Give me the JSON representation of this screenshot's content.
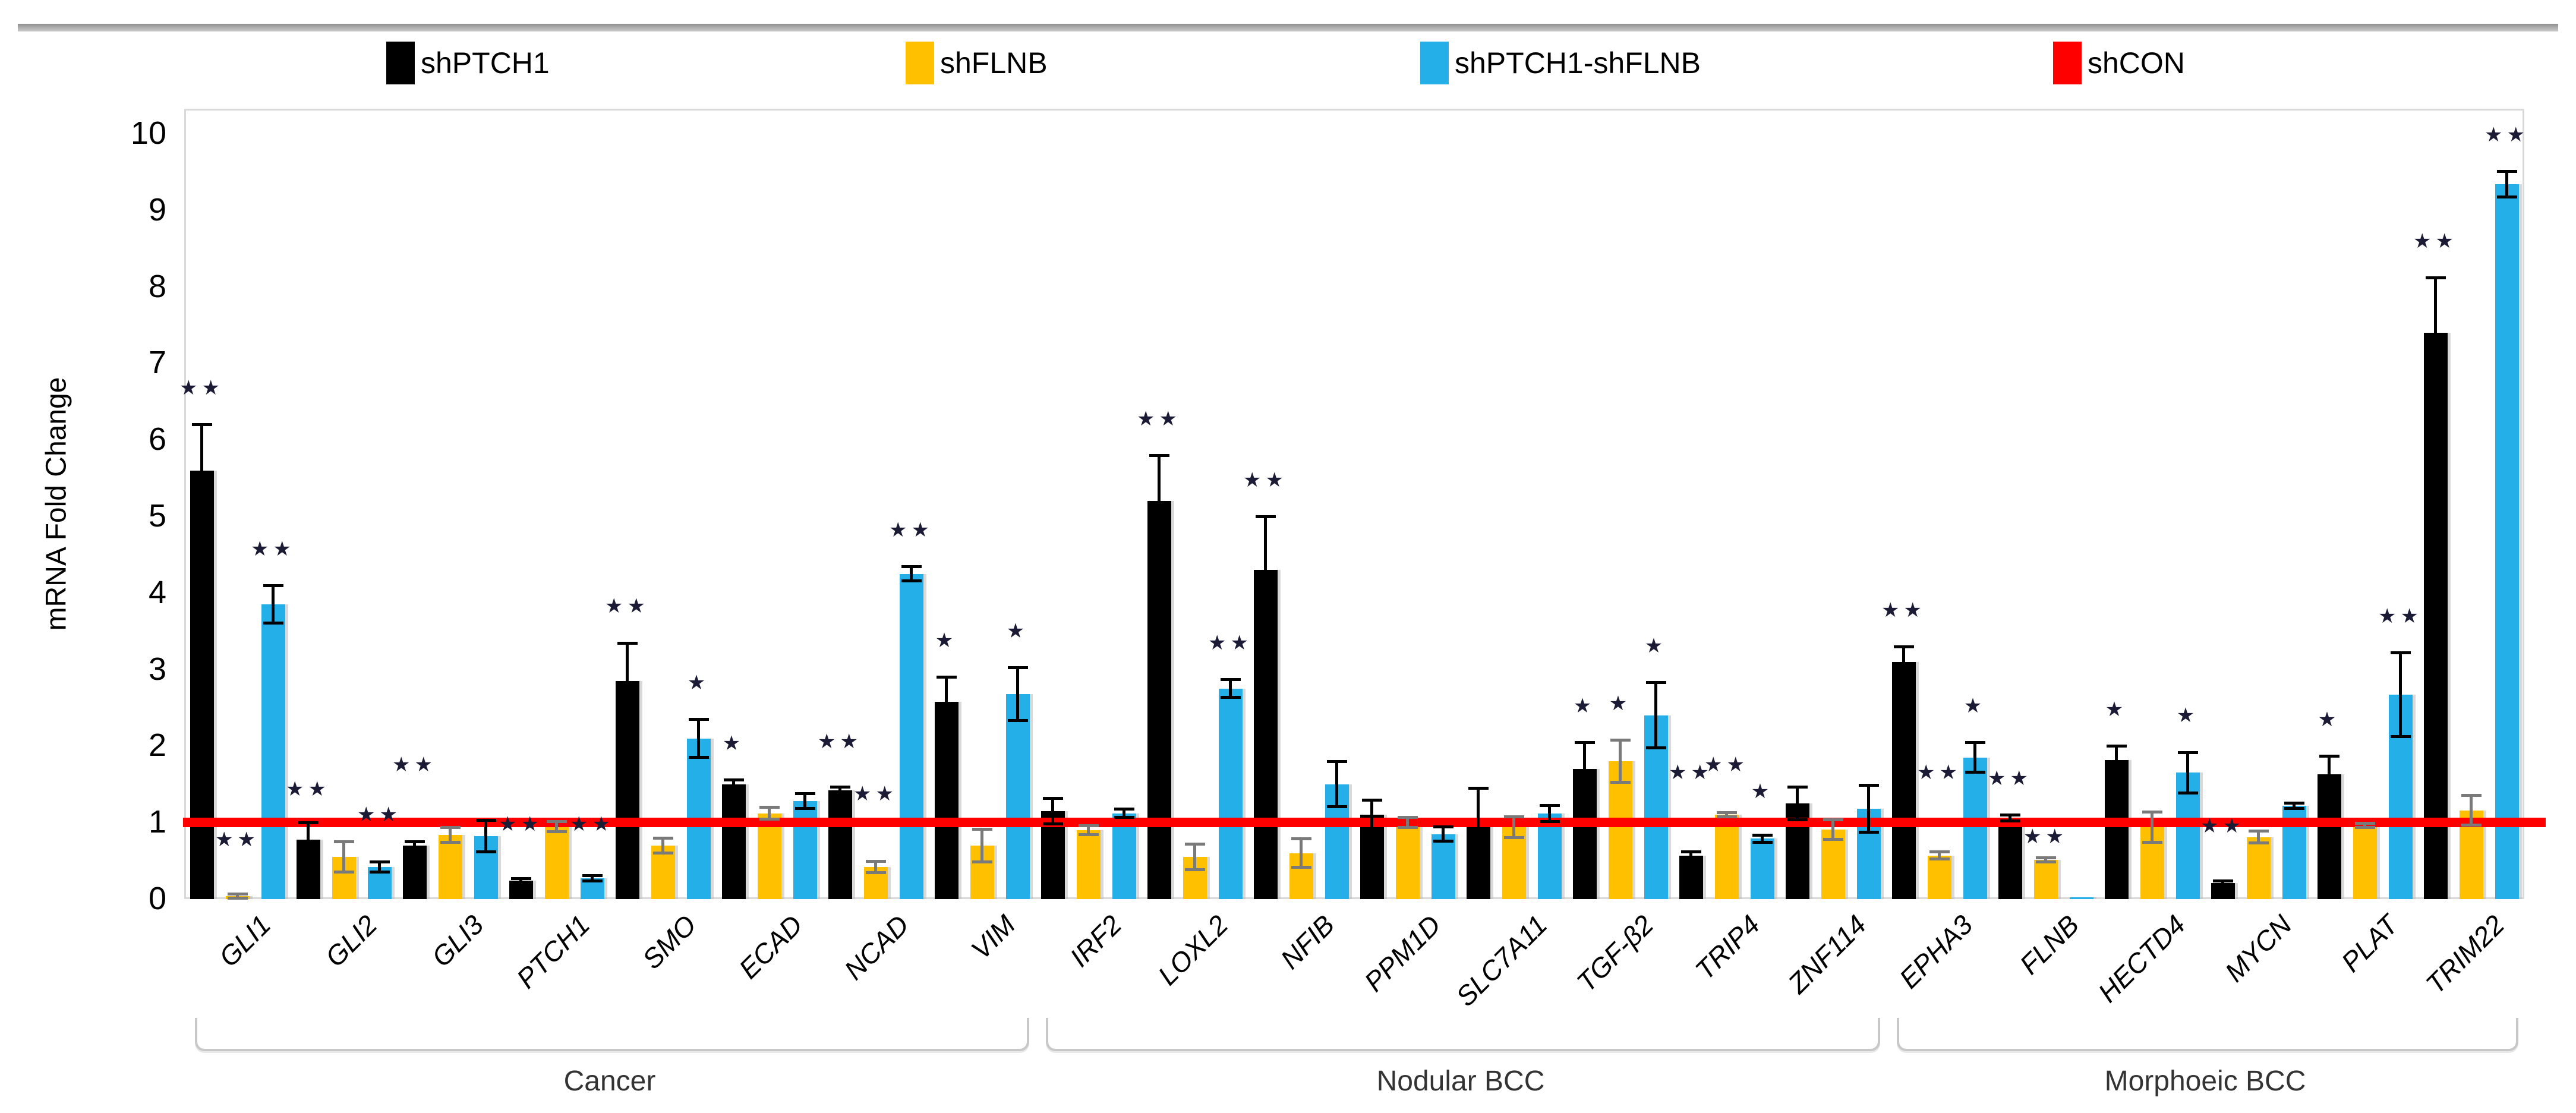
{
  "figure": {
    "y_axis_title": "mRNA Fold Change",
    "star_glyph": "★"
  },
  "legend": {
    "items": [
      {
        "label": "shPTCH1",
        "color": "#000000",
        "x": 650
      },
      {
        "label": "shFLNB",
        "color": "#FFC000",
        "x": 1524
      },
      {
        "label": "shPTCH1-shFLNB",
        "color": "#25AFE8",
        "x": 2390
      },
      {
        "label": "shCON",
        "color": "#FF0000",
        "x": 3455
      }
    ]
  },
  "chart_data": {
    "type": "bar",
    "title": "",
    "xlabel": "",
    "ylabel": "mRNA Fold Change",
    "ylim": [
      0,
      10
    ],
    "yticks": [
      0,
      1,
      2,
      3,
      4,
      5,
      6,
      7,
      8,
      9,
      10
    ],
    "grid": false,
    "legend_position": "top",
    "series_meta": [
      {
        "name": "shPTCH1",
        "color": "#000000",
        "errbar_color": "#000000"
      },
      {
        "name": "shFLNB",
        "color": "#FFC000",
        "errbar_color": "#7a7a7a"
      },
      {
        "name": "shPTCH1-shFLNB",
        "color": "#25AFE8",
        "errbar_color": "#000000"
      }
    ],
    "reference_line": {
      "label": "shCON",
      "value": 1,
      "color": "#FF0000"
    },
    "significance_note": "stars above bars: * p<0.05, ** p<0.01 (as rendered)",
    "groups": [
      {
        "name": "Cancer",
        "genes": [
          {
            "gene": "GLI1",
            "bars": [
              {
                "v": 5.6,
                "e": 0.6,
                "sig": "**"
              },
              {
                "v": 0.04,
                "e": 0.03,
                "sig": "**",
                "sy": 0.62
              },
              {
                "v": 3.85,
                "e": 0.25,
                "sig": "**"
              }
            ]
          },
          {
            "gene": "GLI2",
            "bars": [
              {
                "v": 0.78,
                "e": 0.22,
                "sig": "**",
                "sy": 1.28
              },
              {
                "v": 0.55,
                "e": 0.2,
                "sig": ""
              },
              {
                "v": 0.42,
                "e": 0.07,
                "sig": "**",
                "sy": 0.95
              }
            ]
          },
          {
            "gene": "GLI3",
            "bars": [
              {
                "v": 0.7,
                "e": 0.05,
                "sig": "**",
                "sy": 1.6
              },
              {
                "v": 0.84,
                "e": 0.1,
                "sig": ""
              },
              {
                "v": 0.82,
                "e": 0.21,
                "sig": ""
              }
            ]
          },
          {
            "gene": "PTCH1",
            "bars": [
              {
                "v": 0.24,
                "e": 0.03,
                "sig": "**",
                "sy": 0.82
              },
              {
                "v": 0.95,
                "e": 0.07,
                "sig": ""
              },
              {
                "v": 0.27,
                "e": 0.04,
                "sig": "**",
                "sy": 0.82
              }
            ]
          },
          {
            "gene": "SMO",
            "bars": [
              {
                "v": 2.85,
                "e": 0.5,
                "sig": "**"
              },
              {
                "v": 0.7,
                "e": 0.1,
                "sig": ""
              },
              {
                "v": 2.1,
                "e": 0.25,
                "sig": "*"
              }
            ]
          },
          {
            "gene": "ECAD",
            "bars": [
              {
                "v": 1.5,
                "e": 0.06,
                "sig": "*"
              },
              {
                "v": 1.12,
                "e": 0.08,
                "sig": ""
              },
              {
                "v": 1.28,
                "e": 0.1,
                "sig": ""
              }
            ]
          },
          {
            "gene": "NCAD",
            "bars": [
              {
                "v": 1.42,
                "e": 0.05,
                "sig": "**",
                "sy": 1.9
              },
              {
                "v": 0.42,
                "e": 0.08,
                "sig": "**",
                "sy": 1.22
              },
              {
                "v": 4.25,
                "e": 0.1,
                "sig": "**"
              }
            ]
          },
          {
            "gene": "VIM",
            "bars": [
              {
                "v": 2.58,
                "e": 0.32,
                "sig": "*"
              },
              {
                "v": 0.7,
                "e": 0.22,
                "sig": ""
              },
              {
                "v": 2.68,
                "e": 0.35,
                "sig": "*"
              }
            ]
          }
        ]
      },
      {
        "name": "Nodular BCC",
        "genes": [
          {
            "gene": "IRF2",
            "bars": [
              {
                "v": 1.15,
                "e": 0.17,
                "sig": ""
              },
              {
                "v": 0.9,
                "e": 0.06,
                "sig": ""
              },
              {
                "v": 1.12,
                "e": 0.06,
                "sig": ""
              }
            ]
          },
          {
            "gene": "LOXL2",
            "bars": [
              {
                "v": 5.2,
                "e": 0.6,
                "sig": "**"
              },
              {
                "v": 0.55,
                "e": 0.17,
                "sig": ""
              },
              {
                "v": 2.75,
                "e": 0.12,
                "sig": "**"
              }
            ]
          },
          {
            "gene": "NFIB",
            "bars": [
              {
                "v": 4.3,
                "e": 0.7,
                "sig": "**"
              },
              {
                "v": 0.6,
                "e": 0.19,
                "sig": ""
              },
              {
                "v": 1.5,
                "e": 0.3,
                "sig": ""
              }
            ]
          },
          {
            "gene": "PPM1D",
            "bars": [
              {
                "v": 1.1,
                "e": 0.2,
                "sig": ""
              },
              {
                "v": 1.0,
                "e": 0.07,
                "sig": ""
              },
              {
                "v": 0.85,
                "e": 0.1,
                "sig": ""
              }
            ]
          },
          {
            "gene": "SLC7A11",
            "bars": [
              {
                "v": 1.05,
                "e": 0.4,
                "sig": ""
              },
              {
                "v": 0.94,
                "e": 0.14,
                "sig": ""
              },
              {
                "v": 1.12,
                "e": 0.11,
                "sig": ""
              }
            ]
          },
          {
            "gene": "TGF-β2",
            "bars": [
              {
                "v": 1.7,
                "e": 0.35,
                "sig": "*"
              },
              {
                "v": 1.8,
                "e": 0.28,
                "sig": "*"
              },
              {
                "v": 2.4,
                "e": 0.43,
                "sig": "*"
              }
            ]
          },
          {
            "gene": "TRIP4",
            "bars": [
              {
                "v": 0.57,
                "e": 0.05,
                "sig": "**",
                "sy": 1.5
              },
              {
                "v": 1.1,
                "e": 0.03,
                "sig": "**",
                "sy": 1.6
              },
              {
                "v": 0.79,
                "e": 0.05,
                "sig": "*",
                "sy": 1.25
              }
            ]
          },
          {
            "gene": "ZNF114",
            "bars": [
              {
                "v": 1.25,
                "e": 0.22,
                "sig": ""
              },
              {
                "v": 0.91,
                "e": 0.13,
                "sig": ""
              },
              {
                "v": 1.18,
                "e": 0.31,
                "sig": ""
              }
            ]
          }
        ]
      },
      {
        "name": "Morphoeic BCC",
        "genes": [
          {
            "gene": "EPHA3",
            "bars": [
              {
                "v": 3.1,
                "e": 0.2,
                "sig": "**"
              },
              {
                "v": 0.57,
                "e": 0.05,
                "sig": "**",
                "sy": 1.5
              },
              {
                "v": 1.85,
                "e": 0.2,
                "sig": "*"
              }
            ]
          },
          {
            "gene": "FLNB",
            "bars": [
              {
                "v": 1.06,
                "e": 0.04,
                "sig": "**",
                "sy": 1.42
              },
              {
                "v": 0.51,
                "e": 0.03,
                "sig": "**",
                "sy": 0.66
              },
              {
                "v": 0.02,
                "e": 0,
                "sig": ""
              }
            ]
          },
          {
            "gene": "HECTD4",
            "bars": [
              {
                "v": 1.82,
                "e": 0.18,
                "sig": "*"
              },
              {
                "v": 0.94,
                "e": 0.2,
                "sig": ""
              },
              {
                "v": 1.65,
                "e": 0.27,
                "sig": "*"
              }
            ]
          },
          {
            "gene": "MYCN",
            "bars": [
              {
                "v": 0.21,
                "e": 0.03,
                "sig": "**",
                "sy": 0.8
              },
              {
                "v": 0.81,
                "e": 0.08,
                "sig": ""
              },
              {
                "v": 1.22,
                "e": 0.04,
                "sig": ""
              }
            ]
          },
          {
            "gene": "PLAT",
            "bars": [
              {
                "v": 1.63,
                "e": 0.24,
                "sig": "*"
              },
              {
                "v": 0.96,
                "e": 0.03,
                "sig": ""
              },
              {
                "v": 2.67,
                "e": 0.55,
                "sig": "**"
              }
            ]
          },
          {
            "gene": "TRIM22",
            "bars": [
              {
                "v": 7.4,
                "e": 0.72,
                "sig": "**"
              },
              {
                "v": 1.16,
                "e": 0.2,
                "sig": ""
              },
              {
                "v": 9.34,
                "e": 0.17,
                "sig": "**"
              }
            ]
          }
        ]
      }
    ]
  }
}
